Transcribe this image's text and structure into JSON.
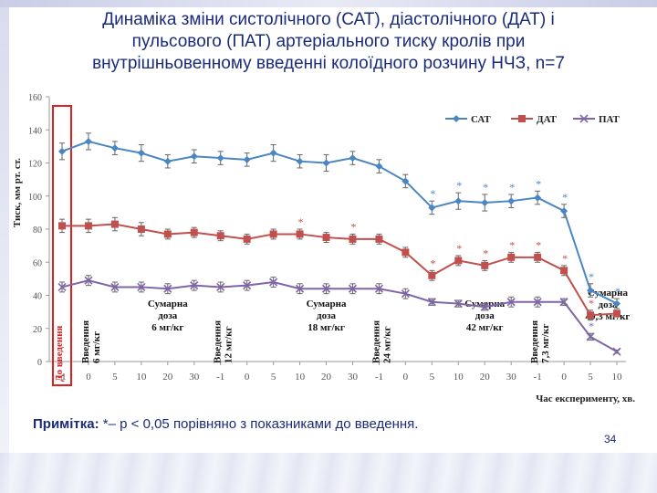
{
  "slide": {
    "title_lines": [
      "Динаміка зміни систолічного (САТ), діастолічного (ДАТ) і",
      "пульсового (ПАТ) артеріального тиску кролів при",
      "внутрішньовенному введенні колоїдного розчину НЧЗ, n=7"
    ],
    "note_label": "Примітка:",
    "note_text": " *– p < 0,05 порівняно з показниками до введення.",
    "page_number": "34"
  },
  "colors": {
    "sat": "#4a86c4",
    "dat": "#c0504d",
    "pat": "#7f65a8",
    "highlight_box": "#e02020",
    "axis_text": "#555555",
    "annotation_text": "#111111"
  },
  "chart_data": {
    "type": "line",
    "title": "",
    "ylabel": "Тиск, мм рт. ст.",
    "xlabel": "Час експерименту, хв.",
    "ylim": [
      0,
      160
    ],
    "yticks": [
      0,
      20,
      40,
      60,
      80,
      100,
      120,
      140,
      160
    ],
    "grid": false,
    "legend_position": "top-right",
    "categories": [
      "-1",
      "0",
      "5",
      "10",
      "20",
      "30",
      "-1",
      "0",
      "5",
      "10",
      "20",
      "30",
      "-1",
      "0",
      "5",
      "10",
      "20",
      "30",
      "-1",
      "0",
      "5",
      "10"
    ],
    "series": [
      {
        "name": "САТ",
        "values": [
          127,
          133,
          129,
          126,
          121,
          124,
          123,
          122,
          126,
          121,
          120,
          123,
          118,
          109,
          93,
          97,
          96,
          97,
          99,
          91,
          43,
          35
        ],
        "errors": [
          5,
          5,
          4,
          5,
          4,
          4,
          4,
          4,
          5,
          4,
          5,
          4,
          4,
          4,
          4,
          5,
          5,
          4,
          4,
          4,
          4,
          3
        ],
        "significant": [
          false,
          false,
          false,
          false,
          false,
          false,
          false,
          false,
          false,
          false,
          false,
          false,
          false,
          false,
          true,
          true,
          true,
          true,
          true,
          true,
          true,
          true
        ]
      },
      {
        "name": "ДАТ",
        "values": [
          82,
          82,
          83,
          80,
          77,
          78,
          76,
          74,
          77,
          77,
          75,
          74,
          74,
          66,
          52,
          61,
          58,
          63,
          63,
          55,
          28,
          29
        ],
        "errors": [
          4,
          4,
          4,
          4,
          3,
          3,
          3,
          3,
          3,
          3,
          3,
          3,
          3,
          3,
          3,
          3,
          3,
          3,
          3,
          3,
          3,
          2
        ],
        "significant": [
          false,
          false,
          false,
          false,
          false,
          false,
          false,
          false,
          false,
          true,
          false,
          true,
          false,
          false,
          true,
          true,
          true,
          true,
          true,
          true,
          true,
          false
        ]
      },
      {
        "name": "ПАТ",
        "values": [
          45,
          49,
          45,
          45,
          44,
          46,
          45,
          46,
          48,
          44,
          44,
          44,
          44,
          41,
          36,
          35,
          33,
          36,
          36,
          36,
          15,
          6
        ],
        "errors": [
          3,
          3,
          3,
          3,
          3,
          3,
          3,
          3,
          3,
          3,
          3,
          3,
          3,
          3,
          2,
          2,
          2,
          3,
          3,
          2,
          2,
          1
        ],
        "significant": [
          false,
          false,
          false,
          false,
          false,
          false,
          false,
          false,
          false,
          false,
          false,
          false,
          false,
          false,
          false,
          false,
          false,
          false,
          false,
          false,
          true,
          false
        ]
      }
    ],
    "annotations": [
      {
        "text": [
          "До введення",
          "→"
        ],
        "index": 0,
        "vertical": true,
        "color": "#e02020"
      },
      {
        "text": [
          "Введення",
          "6 мг/кг"
        ],
        "index": 1,
        "vertical": true
      },
      {
        "text": [
          "Сумарна",
          "доза",
          "6 мг/кг"
        ],
        "index": 4,
        "vertical": false
      },
      {
        "text": [
          "Введення",
          "12 мг/кг"
        ],
        "index": 6,
        "vertical": true
      },
      {
        "text": [
          "Сумарна",
          "доза",
          "18 мг/кг"
        ],
        "index": 10,
        "vertical": false
      },
      {
        "text": [
          "Введення",
          "24 мг/кг"
        ],
        "index": 12,
        "vertical": true
      },
      {
        "text": [
          "Сумарна",
          "доза",
          "42 мг/кг"
        ],
        "index": 16,
        "vertical": false
      },
      {
        "text": [
          "Введення",
          "7,3 мг/кг"
        ],
        "index": 18,
        "vertical": true
      },
      {
        "text": [
          "Сумарна",
          "доза",
          "49,3 мг/кг"
        ],
        "index": 21,
        "vertical": false
      }
    ]
  }
}
